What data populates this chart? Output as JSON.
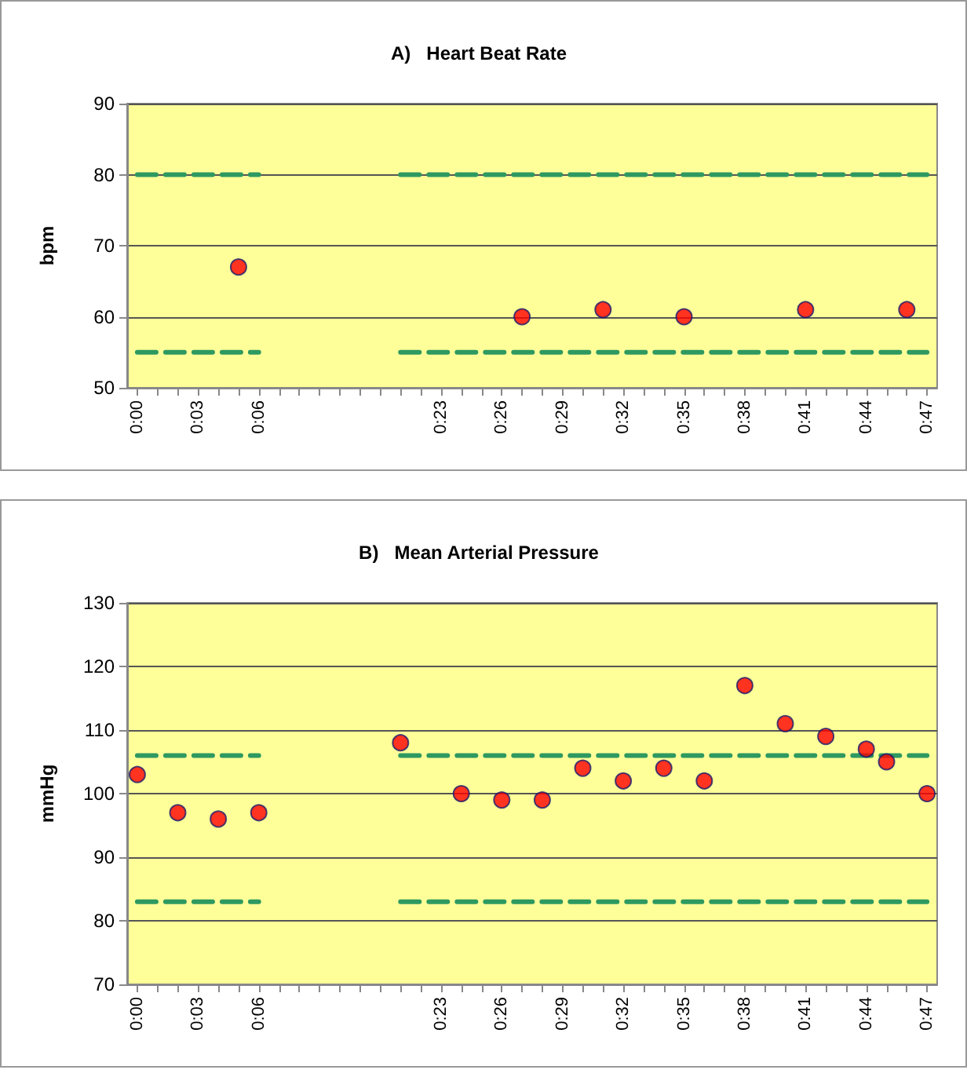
{
  "chart_data": [
    {
      "type": "scatter",
      "title": "A)   Heart Beat Rate",
      "ylabel": "bpm",
      "categories": [
        "0:00",
        null,
        null,
        "0:03",
        null,
        null,
        "0:06",
        null,
        null,
        null,
        null,
        null,
        null,
        null,
        null,
        "0:23",
        null,
        null,
        "0:26",
        null,
        null,
        "0:29",
        null,
        null,
        "0:32",
        null,
        null,
        "0:35",
        null,
        null,
        "0:38",
        null,
        null,
        "0:41",
        null,
        null,
        "0:44",
        null,
        null,
        "0:47"
      ],
      "ylim": [
        50,
        90
      ],
      "yticks": [
        50,
        60,
        70,
        80,
        90
      ],
      "grid": "y",
      "series": [
        {
          "color": "#ff0000",
          "marker": "circle",
          "values": [
            null,
            null,
            null,
            null,
            null,
            67,
            null,
            null,
            null,
            null,
            null,
            null,
            null,
            null,
            null,
            null,
            null,
            null,
            null,
            60,
            null,
            null,
            null,
            61,
            null,
            null,
            null,
            60,
            null,
            null,
            null,
            null,
            null,
            61,
            null,
            null,
            null,
            null,
            61,
            null
          ]
        },
        {
          "type": "line",
          "color": "#2e9960",
          "line_style": "dashed",
          "marker": "none",
          "values": [
            80,
            80,
            80,
            80,
            80,
            80,
            80,
            null,
            null,
            null,
            null,
            null,
            null,
            80,
            80,
            80,
            80,
            80,
            80,
            80,
            80,
            80,
            80,
            80,
            80,
            80,
            80,
            80,
            80,
            80,
            80,
            80,
            80,
            80,
            80,
            80,
            80,
            80,
            80,
            80
          ]
        },
        {
          "type": "line",
          "color": "#2e9960",
          "line_style": "dashed",
          "marker": "none",
          "values": [
            55,
            55,
            55,
            55,
            55,
            55,
            55,
            null,
            null,
            null,
            null,
            null,
            null,
            55,
            55,
            55,
            55,
            55,
            55,
            55,
            55,
            55,
            55,
            55,
            55,
            55,
            55,
            55,
            55,
            55,
            55,
            55,
            55,
            55,
            55,
            55,
            55,
            55,
            55,
            55
          ]
        }
      ]
    },
    {
      "type": "scatter",
      "title": "B)   Mean Arterial Pressure",
      "ylabel": "mmHg",
      "categories": [
        "0:00",
        null,
        null,
        "0:03",
        null,
        null,
        "0:06",
        null,
        null,
        null,
        null,
        null,
        null,
        null,
        null,
        "0:23",
        null,
        null,
        "0:26",
        null,
        null,
        "0:29",
        null,
        null,
        "0:32",
        null,
        null,
        "0:35",
        null,
        null,
        "0:38",
        null,
        null,
        "0:41",
        null,
        null,
        "0:44",
        null,
        null,
        "0:47"
      ],
      "ylim": [
        70,
        130
      ],
      "yticks": [
        70,
        80,
        90,
        100,
        110,
        120,
        130
      ],
      "grid": "y",
      "series": [
        {
          "color": "#ff0000",
          "marker": "circle",
          "values": [
            103,
            null,
            97,
            null,
            96,
            null,
            97,
            null,
            null,
            null,
            null,
            null,
            null,
            108,
            null,
            null,
            100,
            null,
            99,
            null,
            99,
            null,
            104,
            null,
            102,
            null,
            104,
            null,
            102,
            null,
            117,
            null,
            111,
            null,
            109,
            null,
            107,
            105,
            null,
            100
          ]
        },
        {
          "type": "line",
          "color": "#2e9960",
          "line_style": "dashed",
          "marker": "none",
          "values": [
            106,
            106,
            106,
            106,
            106,
            106,
            106,
            null,
            null,
            null,
            null,
            null,
            null,
            106,
            106,
            106,
            106,
            106,
            106,
            106,
            106,
            106,
            106,
            106,
            106,
            106,
            106,
            106,
            106,
            106,
            106,
            106,
            106,
            106,
            106,
            106,
            106,
            106,
            106,
            106
          ]
        },
        {
          "type": "line",
          "color": "#2e9960",
          "line_style": "dashed",
          "marker": "none",
          "values": [
            83,
            83,
            83,
            83,
            83,
            83,
            83,
            null,
            null,
            null,
            null,
            null,
            null,
            83,
            83,
            83,
            83,
            83,
            83,
            83,
            83,
            83,
            83,
            83,
            83,
            83,
            83,
            83,
            83,
            83,
            83,
            83,
            83,
            83,
            83,
            83,
            83,
            83,
            83,
            83
          ]
        }
      ]
    }
  ]
}
